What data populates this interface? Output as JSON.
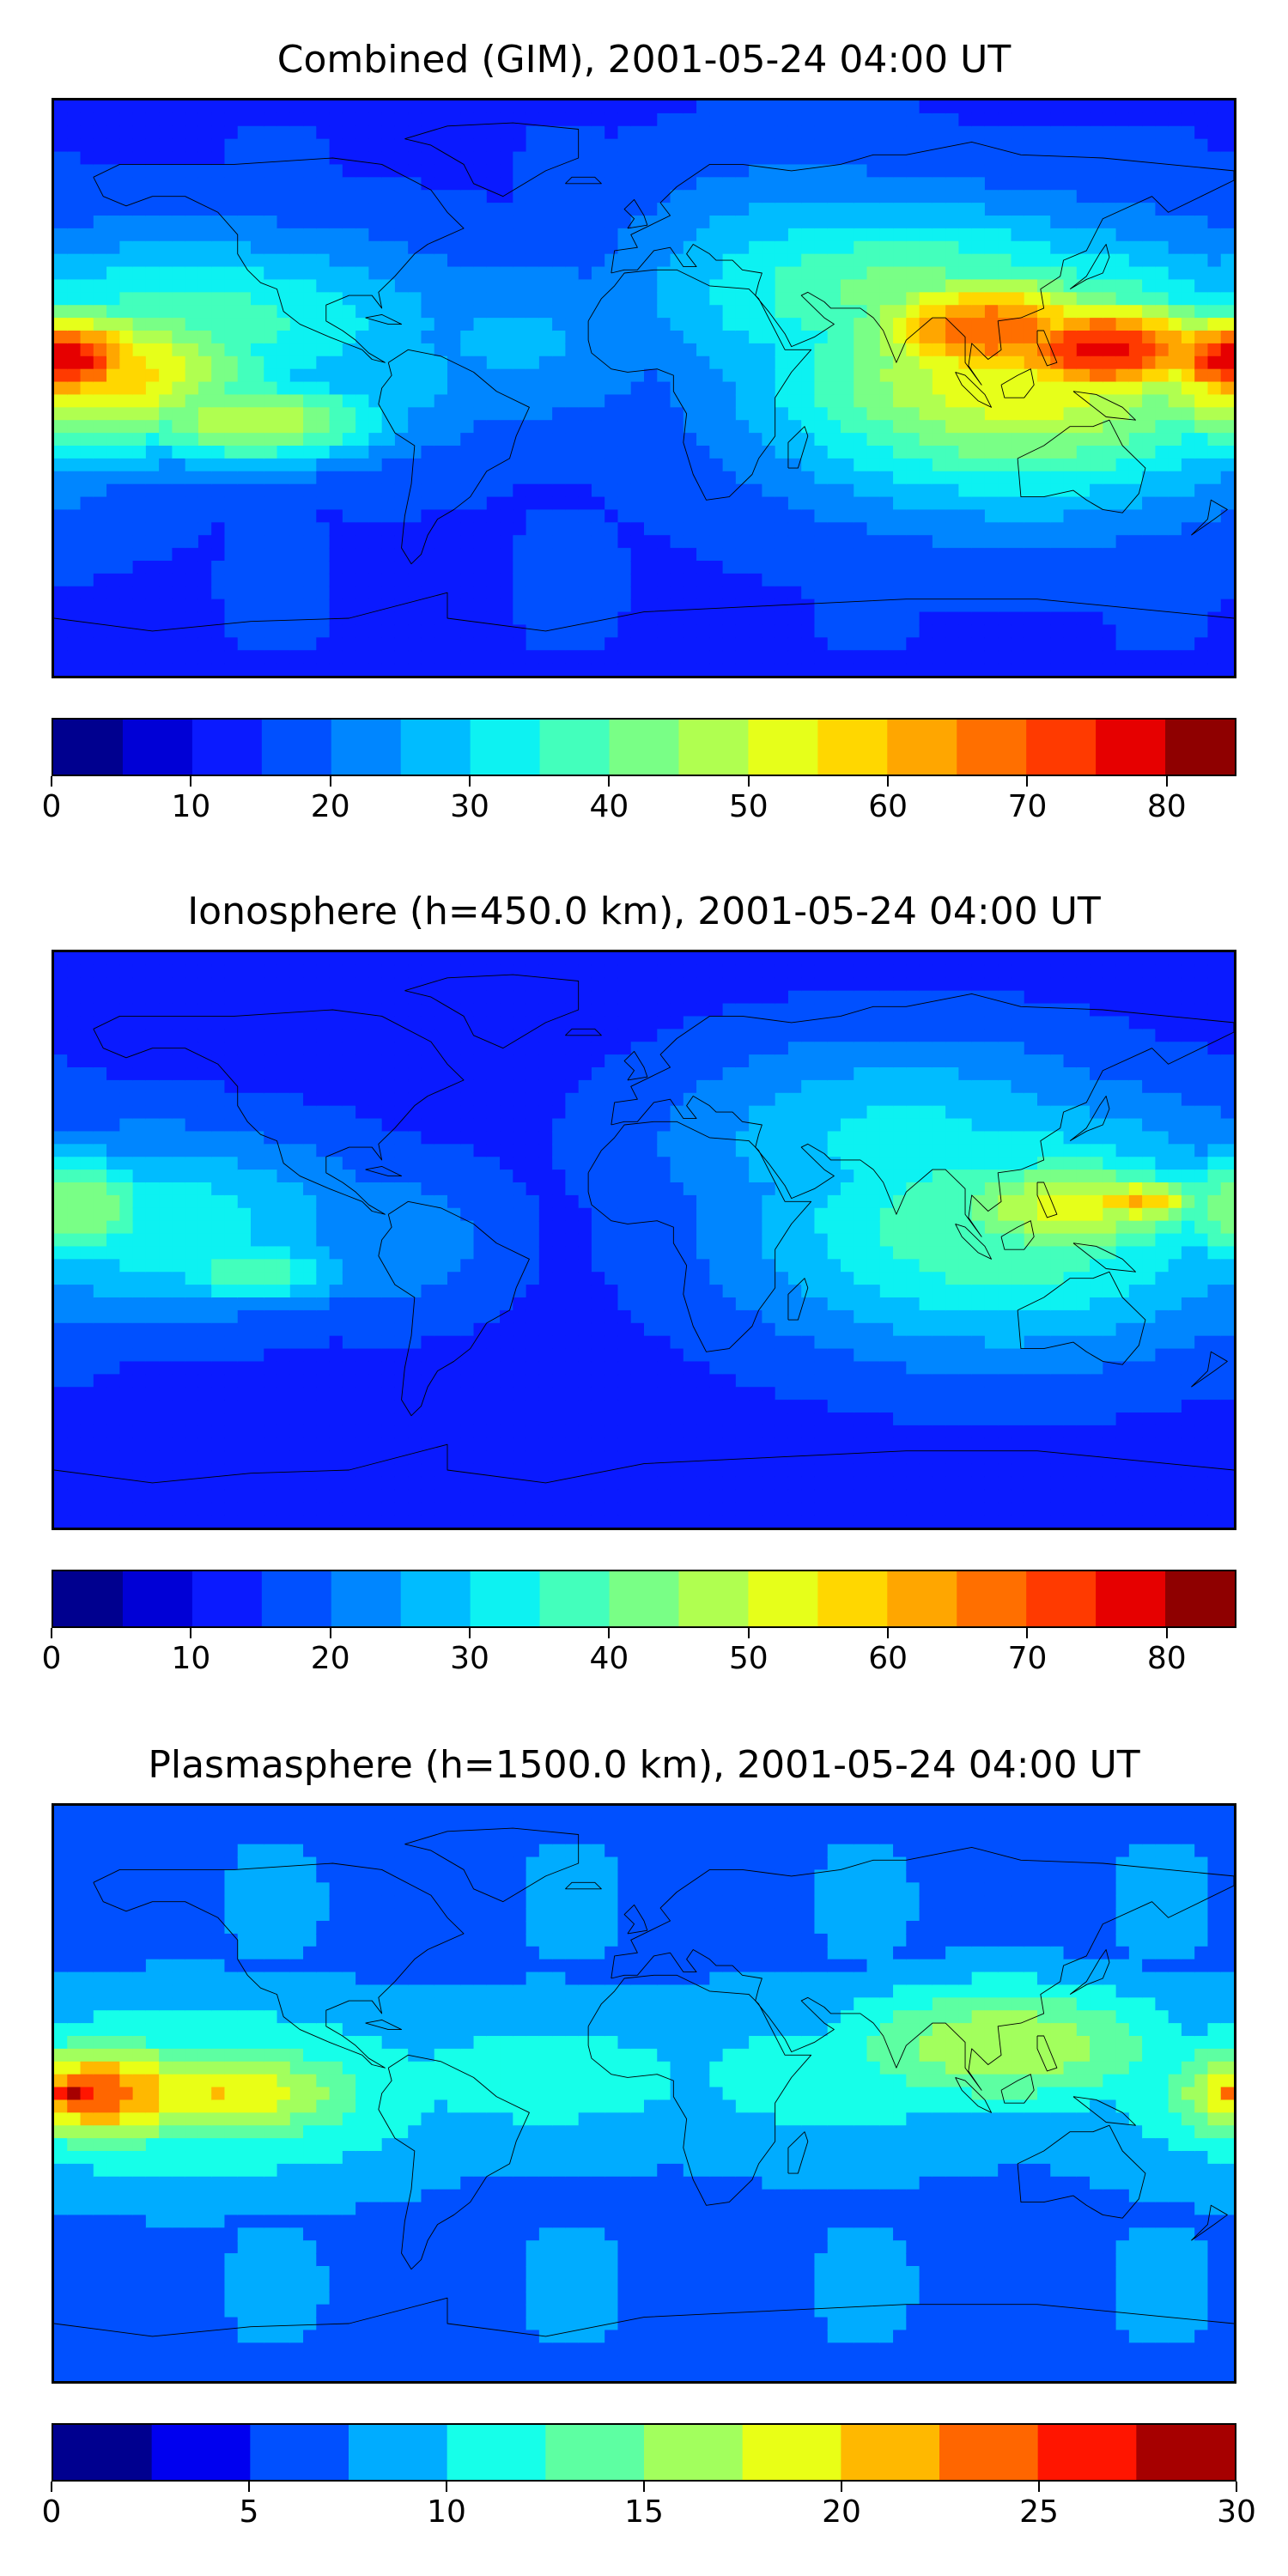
{
  "chart_data": [
    {
      "type": "heatmap",
      "title": "Combined (GIM), 2001-05-24 04:00 UT",
      "colorbar": {
        "min": 0,
        "max": 85,
        "step": 5,
        "ticks": [
          0,
          10,
          20,
          30,
          40,
          50,
          60,
          70,
          80
        ]
      },
      "field_background": 14,
      "features": [
        {
          "lon": -178,
          "lat": 9,
          "value": 80,
          "spread_lon": 22,
          "spread_lat": 11
        },
        {
          "lon": -170,
          "lat": 5,
          "value": 60,
          "spread_lon": 42,
          "spread_lat": 18
        },
        {
          "lon": -120,
          "lat": -10,
          "value": 50,
          "spread_lon": 32,
          "spread_lat": 10
        },
        {
          "lon": -140,
          "lat": 20,
          "value": 38,
          "spread_lon": 60,
          "spread_lat": 20
        },
        {
          "lon": 140,
          "lat": 12,
          "value": 78,
          "spread_lon": 30,
          "spread_lat": 12
        },
        {
          "lon": 105,
          "lat": 18,
          "value": 70,
          "spread_lon": 32,
          "spread_lat": 14
        },
        {
          "lon": 115,
          "lat": 5,
          "value": 55,
          "spread_lon": 55,
          "spread_lat": 28
        },
        {
          "lon": 80,
          "lat": 30,
          "value": 42,
          "spread_lon": 55,
          "spread_lat": 20
        },
        {
          "lon": 50,
          "lat": 30,
          "value": 35,
          "spread_lon": 40,
          "spread_lat": 25
        },
        {
          "lon": -40,
          "lat": 15,
          "value": 26,
          "spread_lon": 40,
          "spread_lat": 20
        },
        {
          "lon": -80,
          "lat": 5,
          "value": 28,
          "spread_lon": 30,
          "spread_lat": 20
        },
        {
          "lon": 10,
          "lat": -45,
          "value": 6,
          "spread_lon": 60,
          "spread_lat": 10
        },
        {
          "lon": -20,
          "lat": 55,
          "value": 6,
          "spread_lon": 25,
          "spread_lat": 15
        }
      ]
    },
    {
      "type": "heatmap",
      "title": "Ionosphere  (h=450.0 km), 2001-05-24 04:00 UT",
      "colorbar": {
        "min": 0,
        "max": 85,
        "step": 5,
        "ticks": [
          0,
          10,
          20,
          30,
          40,
          50,
          60,
          70,
          80
        ]
      },
      "field_background": 12,
      "features": [
        {
          "lon": 150,
          "lat": 12,
          "value": 60,
          "spread_lon": 18,
          "spread_lat": 6
        },
        {
          "lon": 130,
          "lat": 10,
          "value": 52,
          "spread_lon": 35,
          "spread_lat": 14
        },
        {
          "lon": 110,
          "lat": 5,
          "value": 40,
          "spread_lon": 60,
          "spread_lat": 30
        },
        {
          "lon": 80,
          "lat": 30,
          "value": 32,
          "spread_lon": 55,
          "spread_lat": 25
        },
        {
          "lon": -175,
          "lat": 10,
          "value": 45,
          "spread_lon": 25,
          "spread_lat": 14
        },
        {
          "lon": -150,
          "lat": 5,
          "value": 34,
          "spread_lon": 50,
          "spread_lat": 22
        },
        {
          "lon": -120,
          "lat": -10,
          "value": 38,
          "spread_lon": 25,
          "spread_lat": 8
        },
        {
          "lon": -80,
          "lat": 0,
          "value": 24,
          "spread_lon": 30,
          "spread_lat": 20
        },
        {
          "lon": 0,
          "lat": -10,
          "value": 4,
          "spread_lon": 30,
          "spread_lat": 30
        },
        {
          "lon": 20,
          "lat": -50,
          "value": 4,
          "spread_lon": 70,
          "spread_lat": 10
        }
      ]
    },
    {
      "type": "heatmap",
      "title": "Plasmasphere (h=1500.0 km), 2001-05-24 04:00 UT",
      "colorbar": {
        "min": 0,
        "max": 30,
        "step": 2.5,
        "ticks": [
          0,
          5,
          10,
          15,
          20,
          25,
          30
        ]
      },
      "field_background": 6,
      "features": [
        {
          "lon": -173,
          "lat": 0,
          "value": 28,
          "spread_lon": 12,
          "spread_lat": 6
        },
        {
          "lon": -165,
          "lat": 0,
          "value": 24,
          "spread_lon": 25,
          "spread_lat": 12
        },
        {
          "lon": -130,
          "lat": 0,
          "value": 20,
          "spread_lon": 35,
          "spread_lat": 12
        },
        {
          "lon": -140,
          "lat": 0,
          "value": 14,
          "spread_lon": 65,
          "spread_lat": 22
        },
        {
          "lon": 110,
          "lat": 15,
          "value": 17,
          "spread_lon": 40,
          "spread_lat": 15
        },
        {
          "lon": 180,
          "lat": 0,
          "value": 20,
          "spread_lon": 12,
          "spread_lat": 10
        },
        {
          "lon": -30,
          "lat": 5,
          "value": 11,
          "spread_lon": 60,
          "spread_lat": 20
        },
        {
          "lon": 60,
          "lat": 5,
          "value": 11,
          "spread_lon": 60,
          "spread_lat": 22
        },
        {
          "lon": -60,
          "lat": 60,
          "value": 2,
          "spread_lon": 80,
          "spread_lat": 12
        },
        {
          "lon": 30,
          "lat": -50,
          "value": 2,
          "spread_lon": 90,
          "spread_lat": 14
        }
      ]
    }
  ],
  "palette": [
    "#00008f",
    "#0000d6",
    "#0a1aff",
    "#0050ff",
    "#0086ff",
    "#00bcff",
    "#0df2f2",
    "#43ffbc",
    "#79ff86",
    "#b0ff50",
    "#e6ff1a",
    "#ffd700",
    "#ffa600",
    "#ff6f00",
    "#ff3a00",
    "#e60000",
    "#8f0000"
  ],
  "palette_12": [
    "#00008f",
    "#0000ef",
    "#0050ff",
    "#00acff",
    "#16ffe9",
    "#5dffa2",
    "#a2ff5d",
    "#e9ff16",
    "#ffb800",
    "#ff6600",
    "#ff1500",
    "#a60000"
  ],
  "coastline_color": "#000000"
}
